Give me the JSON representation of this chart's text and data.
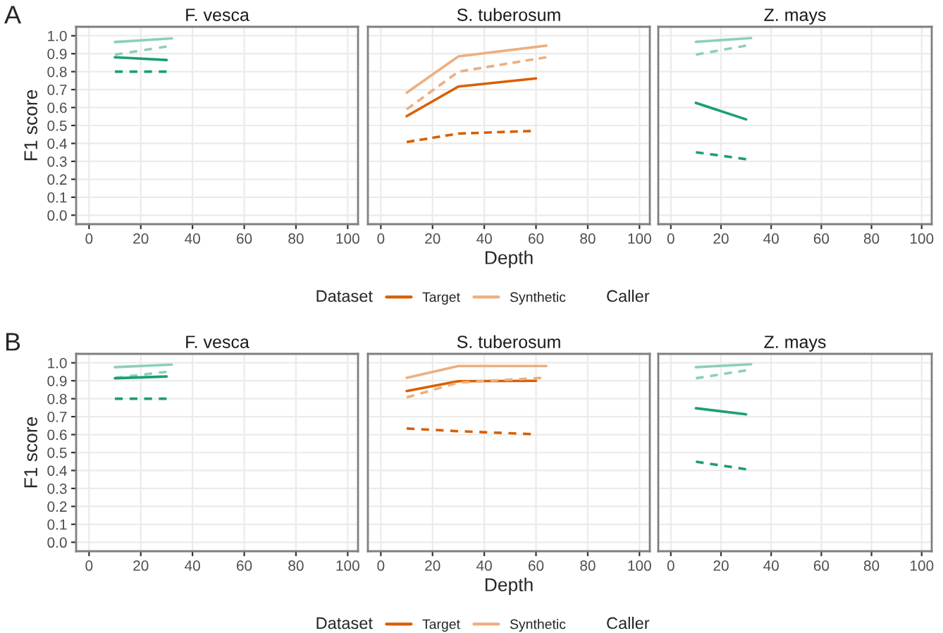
{
  "chart_data": [
    {
      "type": "line",
      "title": "F. vesca",
      "ylabel": "F1 score",
      "annotations": [
        "A"
      ],
      "xlim": [
        -5,
        104
      ],
      "ylim": [
        -0.05,
        1.05
      ],
      "xticks": [
        0,
        20,
        40,
        60,
        80,
        100
      ],
      "yticks": [
        {
          "value": 0,
          "label": "0.0"
        },
        {
          "value": 0.1,
          "label": "0.1"
        },
        {
          "value": 0.2,
          "label": "0.2"
        },
        {
          "value": 0.3,
          "label": "0.3"
        },
        {
          "value": 0.4,
          "label": "0.4"
        },
        {
          "value": 0.5,
          "label": "0.5"
        },
        {
          "value": 0.6,
          "label": "0.6"
        },
        {
          "value": 0.7,
          "label": "0.7"
        },
        {
          "value": 0.8,
          "label": "0.8"
        },
        {
          "value": 0.9,
          "label": "0.9"
        },
        {
          "value": 1,
          "label": "1.0"
        }
      ],
      "grid": true,
      "series": [
        {
          "color": "#8dcfbb",
          "line_style": "solid",
          "x": [
            10,
            32
          ],
          "values": [
            0.965,
            0.985
          ]
        },
        {
          "color": "#8dcfbb",
          "line_style": "dashed",
          "x": [
            10,
            30
          ],
          "values": [
            0.895,
            0.94
          ]
        },
        {
          "color": "#1b9e77",
          "line_style": "solid",
          "x": [
            10,
            30
          ],
          "values": [
            0.88,
            0.865
          ]
        },
        {
          "color": "#1b9e77",
          "line_style": "dashed",
          "x": [
            10,
            30
          ],
          "values": [
            0.8,
            0.8
          ]
        }
      ]
    },
    {
      "type": "line",
      "title": "S. tuberosum",
      "xlabel": "Depth",
      "legend_title": "Dataset",
      "legend": "bottom",
      "annotations": [
        "Caller"
      ],
      "tick_labels": "x",
      "xlim": [
        -5,
        104
      ],
      "ylim": [
        -0.05,
        1.05
      ],
      "xticks": [
        0,
        20,
        40,
        60,
        80,
        100
      ],
      "yticks": [
        {
          "value": 0,
          "label": null
        },
        {
          "value": 0.1,
          "label": null
        },
        {
          "value": 0.2,
          "label": null
        },
        {
          "value": 0.3,
          "label": null
        },
        {
          "value": 0.4,
          "label": null
        },
        {
          "value": 0.5,
          "label": null
        },
        {
          "value": 0.6,
          "label": null
        },
        {
          "value": 0.7,
          "label": null
        },
        {
          "value": 0.8,
          "label": null
        },
        {
          "value": 0.9,
          "label": null
        },
        {
          "value": 1,
          "label": null
        }
      ],
      "grid": true,
      "series": [
        {
          "name": "Target",
          "color": "#d95f02",
          "line_style": "solid",
          "x": [
            10,
            30,
            60
          ],
          "values": [
            0.552,
            0.717,
            0.762
          ]
        },
        {
          "color": "#d95f02",
          "line_style": "dashed",
          "x": [
            10,
            30,
            58
          ],
          "values": [
            0.408,
            0.455,
            0.469
          ]
        },
        {
          "name": "Synthetic",
          "color": "#ecaf80",
          "line_style": "solid",
          "x": [
            10,
            30,
            64
          ],
          "values": [
            0.683,
            0.885,
            0.945
          ]
        },
        {
          "color": "#ecaf80",
          "line_style": "dashed",
          "x": [
            10,
            30,
            64
          ],
          "values": [
            0.59,
            0.8,
            0.88
          ]
        }
      ]
    },
    {
      "type": "line",
      "title": "Z. mays",
      "tick_labels": "x",
      "xlim": [
        -5,
        104
      ],
      "ylim": [
        -0.05,
        1.05
      ],
      "xticks": [
        0,
        20,
        40,
        60,
        80,
        100
      ],
      "yticks": [
        {
          "value": 0,
          "label": null
        },
        {
          "value": 0.1,
          "label": null
        },
        {
          "value": 0.2,
          "label": null
        },
        {
          "value": 0.3,
          "label": null
        },
        {
          "value": 0.4,
          "label": null
        },
        {
          "value": 0.5,
          "label": null
        },
        {
          "value": 0.6,
          "label": null
        },
        {
          "value": 0.7,
          "label": null
        },
        {
          "value": 0.8,
          "label": null
        },
        {
          "value": 0.9,
          "label": null
        },
        {
          "value": 1,
          "label": null
        }
      ],
      "grid": true,
      "series": [
        {
          "color": "#8dcfbb",
          "line_style": "solid",
          "x": [
            10,
            32
          ],
          "values": [
            0.966,
            0.987
          ]
        },
        {
          "color": "#8dcfbb",
          "line_style": "dashed",
          "x": [
            10,
            30
          ],
          "values": [
            0.895,
            0.945
          ]
        },
        {
          "color": "#1b9e77",
          "line_style": "solid",
          "x": [
            10,
            30
          ],
          "values": [
            0.626,
            0.534
          ]
        },
        {
          "color": "#1b9e77",
          "line_style": "dashed",
          "x": [
            10,
            30
          ],
          "values": [
            0.351,
            0.312
          ]
        }
      ]
    },
    {
      "type": "line",
      "title": "F. vesca",
      "ylabel": "F1 score",
      "annotations": [
        "B"
      ],
      "xlim": [
        -5,
        104
      ],
      "ylim": [
        -0.05,
        1.05
      ],
      "xticks": [
        0,
        20,
        40,
        60,
        80,
        100
      ],
      "yticks": [
        {
          "value": 0,
          "label": "0.0"
        },
        {
          "value": 0.1,
          "label": "0.1"
        },
        {
          "value": 0.2,
          "label": "0.2"
        },
        {
          "value": 0.3,
          "label": "0.3"
        },
        {
          "value": 0.4,
          "label": "0.4"
        },
        {
          "value": 0.5,
          "label": "0.5"
        },
        {
          "value": 0.6,
          "label": "0.6"
        },
        {
          "value": 0.7,
          "label": "0.7"
        },
        {
          "value": 0.8,
          "label": "0.8"
        },
        {
          "value": 0.9,
          "label": "0.9"
        },
        {
          "value": 1,
          "label": "1.0"
        }
      ],
      "grid": true,
      "series": [
        {
          "color": "#8dcfbb",
          "line_style": "solid",
          "x": [
            10,
            32
          ],
          "values": [
            0.976,
            0.99
          ]
        },
        {
          "color": "#8dcfbb",
          "line_style": "dashed",
          "x": [
            10,
            30
          ],
          "values": [
            0.916,
            0.95
          ]
        },
        {
          "color": "#1b9e77",
          "line_style": "solid",
          "x": [
            10,
            30
          ],
          "values": [
            0.914,
            0.924
          ]
        },
        {
          "color": "#1b9e77",
          "line_style": "dashed",
          "x": [
            10,
            30
          ],
          "values": [
            0.8,
            0.8
          ]
        }
      ]
    },
    {
      "type": "line",
      "title": "S. tuberosum",
      "xlabel": "Depth",
      "legend_title": "Dataset",
      "legend": "bottom",
      "annotations": [
        "Caller"
      ],
      "tick_labels": "x",
      "xlim": [
        -5,
        104
      ],
      "ylim": [
        -0.05,
        1.05
      ],
      "xticks": [
        0,
        20,
        40,
        60,
        80,
        100
      ],
      "yticks": [
        {
          "value": 0,
          "label": null
        },
        {
          "value": 0.1,
          "label": null
        },
        {
          "value": 0.2,
          "label": null
        },
        {
          "value": 0.3,
          "label": null
        },
        {
          "value": 0.4,
          "label": null
        },
        {
          "value": 0.5,
          "label": null
        },
        {
          "value": 0.6,
          "label": null
        },
        {
          "value": 0.7,
          "label": null
        },
        {
          "value": 0.8,
          "label": null
        },
        {
          "value": 0.9,
          "label": null
        },
        {
          "value": 1,
          "label": null
        }
      ],
      "grid": true,
      "series": [
        {
          "name": "Target",
          "color": "#d95f02",
          "line_style": "solid",
          "x": [
            10,
            30,
            60
          ],
          "values": [
            0.843,
            0.898,
            0.9
          ]
        },
        {
          "color": "#d95f02",
          "line_style": "dashed",
          "x": [
            10,
            30,
            58
          ],
          "values": [
            0.634,
            0.619,
            0.603
          ]
        },
        {
          "name": "Synthetic",
          "color": "#ecaf80",
          "line_style": "solid",
          "x": [
            10,
            30,
            64
          ],
          "values": [
            0.916,
            0.982,
            0.982
          ]
        },
        {
          "color": "#ecaf80",
          "line_style": "dashed",
          "x": [
            10,
            30,
            62
          ],
          "values": [
            0.807,
            0.89,
            0.916
          ]
        }
      ]
    },
    {
      "type": "line",
      "title": "Z. mays",
      "tick_labels": "x",
      "xlim": [
        -5,
        104
      ],
      "ylim": [
        -0.05,
        1.05
      ],
      "xticks": [
        0,
        20,
        40,
        60,
        80,
        100
      ],
      "yticks": [
        {
          "value": 0,
          "label": null
        },
        {
          "value": 0.1,
          "label": null
        },
        {
          "value": 0.2,
          "label": null
        },
        {
          "value": 0.3,
          "label": null
        },
        {
          "value": 0.4,
          "label": null
        },
        {
          "value": 0.5,
          "label": null
        },
        {
          "value": 0.6,
          "label": null
        },
        {
          "value": 0.7,
          "label": null
        },
        {
          "value": 0.8,
          "label": null
        },
        {
          "value": 0.9,
          "label": null
        },
        {
          "value": 1,
          "label": null
        }
      ],
      "grid": true,
      "series": [
        {
          "color": "#8dcfbb",
          "line_style": "solid",
          "x": [
            10,
            32
          ],
          "values": [
            0.976,
            0.992
          ]
        },
        {
          "color": "#8dcfbb",
          "line_style": "dashed",
          "x": [
            10,
            30
          ],
          "values": [
            0.914,
            0.958
          ]
        },
        {
          "color": "#1b9e77",
          "line_style": "solid",
          "x": [
            10,
            30
          ],
          "values": [
            0.747,
            0.713
          ]
        },
        {
          "color": "#1b9e77",
          "line_style": "dashed",
          "x": [
            10,
            30
          ],
          "values": [
            0.449,
            0.407
          ]
        }
      ]
    }
  ]
}
